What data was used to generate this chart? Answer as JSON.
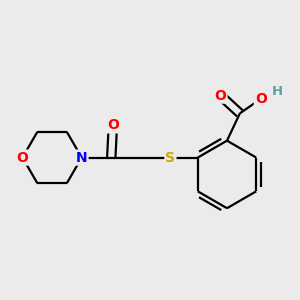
{
  "background_color": "#ebebeb",
  "atom_colors": {
    "C": "#000000",
    "O": "#ff0000",
    "N": "#0000ff",
    "S": "#ccaa00",
    "H": "#5f9ea0"
  },
  "bond_color": "#000000",
  "figsize": [
    3.0,
    3.0
  ],
  "dpi": 100,
  "bond_lw": 1.6
}
